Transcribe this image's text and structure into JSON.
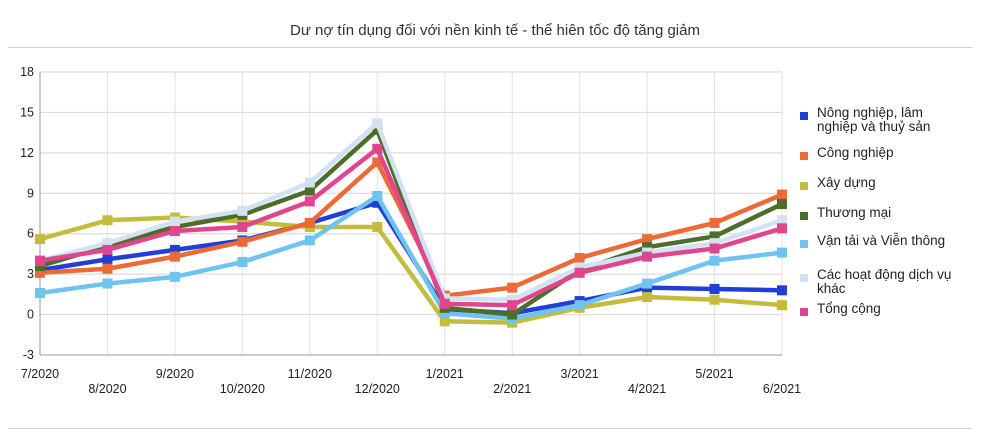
{
  "chart_data": {
    "type": "line",
    "title": "Dư nợ tín dụng đối với nền kinh tế - thể hiên tốc độ tăng giảm",
    "xlabel": "",
    "ylabel": "",
    "ylim": [
      -3,
      18
    ],
    "yticks": [
      -3,
      0,
      3,
      6,
      9,
      12,
      15,
      18
    ],
    "grid": true,
    "legend_position": "right",
    "categories": [
      "7/2020",
      "8/2020",
      "9/2020",
      "10/2020",
      "11/2020",
      "12/2020",
      "1/2021",
      "2/2021",
      "3/2021",
      "4/2021",
      "5/2021",
      "6/2021"
    ],
    "series": [
      {
        "name": "Nông nghiệp, lâm nghiệp và thuỷ sản",
        "color": "#1f3fd6",
        "values": [
          3.3,
          4.1,
          4.8,
          5.5,
          6.8,
          8.3,
          0.4,
          0.1,
          1.0,
          2.0,
          1.9,
          1.8
        ]
      },
      {
        "name": "Công nghiệp",
        "color": "#ec6a36",
        "values": [
          3.1,
          3.4,
          4.3,
          5.4,
          6.8,
          11.3,
          1.4,
          2.0,
          4.2,
          5.6,
          6.8,
          8.9
        ]
      },
      {
        "name": "Xây dựng",
        "color": "#c4bc3c",
        "values": [
          5.6,
          7.0,
          7.2,
          6.9,
          6.5,
          6.5,
          -0.5,
          -0.6,
          0.5,
          1.3,
          1.1,
          0.7
        ]
      },
      {
        "name": "Thương mại",
        "color": "#4d6d2a",
        "values": [
          3.6,
          5.1,
          6.5,
          7.4,
          9.2,
          13.7,
          0.5,
          0.0,
          3.3,
          5.0,
          5.8,
          8.2
        ]
      },
      {
        "name": "Vận tải và Viễn thông",
        "color": "#6ec3ef",
        "values": [
          1.6,
          2.3,
          2.8,
          3.9,
          5.5,
          8.8,
          0.1,
          -0.3,
          0.7,
          2.3,
          4.0,
          4.6
        ]
      },
      {
        "name": "Các hoạt động dịch vụ khác",
        "color": "#d3e2f3",
        "values": [
          4.0,
          5.3,
          6.9,
          7.7,
          9.8,
          14.2,
          1.2,
          1.1,
          3.5,
          4.6,
          5.3,
          7.0
        ]
      },
      {
        "name": "Tổng cộng",
        "color": "#e0458e",
        "values": [
          4.0,
          4.8,
          6.2,
          6.5,
          8.4,
          12.3,
          0.8,
          0.7,
          3.1,
          4.3,
          4.9,
          6.4
        ]
      }
    ]
  }
}
